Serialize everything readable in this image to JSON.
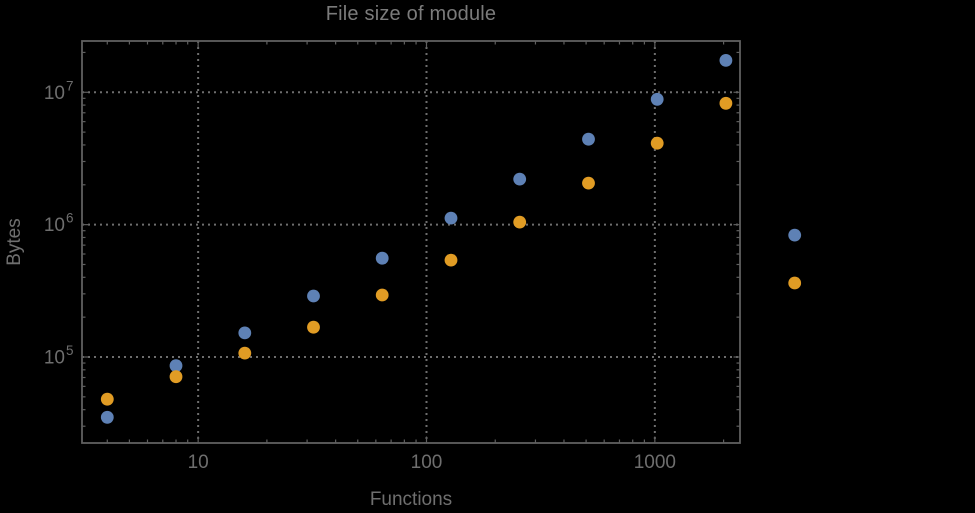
{
  "title": "File size of module",
  "axes": {
    "x_label": "Functions",
    "y_label": "Bytes"
  },
  "colors": {
    "background": "#000000",
    "frame": "#5f5f5f",
    "grid": "#6e6e6e",
    "title_text": "#7b7b7b",
    "tick_text": "#6e6e6e",
    "series_blue": "#5e81b5",
    "series_orange": "#e19c24"
  },
  "chart_data": {
    "type": "scatter",
    "title": "File size of module",
    "xlabel": "Functions",
    "ylabel": "Bytes",
    "xscale": "log",
    "yscale": "log",
    "xlim": [
      3.1,
      2360
    ],
    "ylim": [
      22400,
      24400000
    ],
    "grid": "dotted at major ticks",
    "legend": "none",
    "plot_range_clipping": false,
    "x_major_ticks": [
      {
        "value": 10,
        "label": "10"
      },
      {
        "value": 100,
        "label": "100"
      },
      {
        "value": 1000,
        "label": "1000"
      }
    ],
    "y_major_ticks": [
      {
        "value": 100000,
        "base": "10",
        "exp": "5"
      },
      {
        "value": 1000000,
        "base": "10",
        "exp": "6"
      },
      {
        "value": 10000000,
        "base": "10",
        "exp": "7"
      }
    ],
    "x": [
      4,
      8,
      16,
      32,
      64,
      128,
      256,
      512,
      1024,
      2048,
      4096
    ],
    "series": [
      {
        "name": "series-blue",
        "color": "#5e81b5",
        "values": [
          35000,
          86000,
          152000,
          289000,
          558000,
          1120000,
          2210000,
          4420000,
          8850000,
          17400000,
          834000
        ]
      },
      {
        "name": "series-orange",
        "color": "#e19c24",
        "values": [
          48000,
          71000,
          107000,
          168000,
          294000,
          540000,
          1045000,
          2060000,
          4120000,
          8260000,
          362000
        ]
      }
    ]
  }
}
